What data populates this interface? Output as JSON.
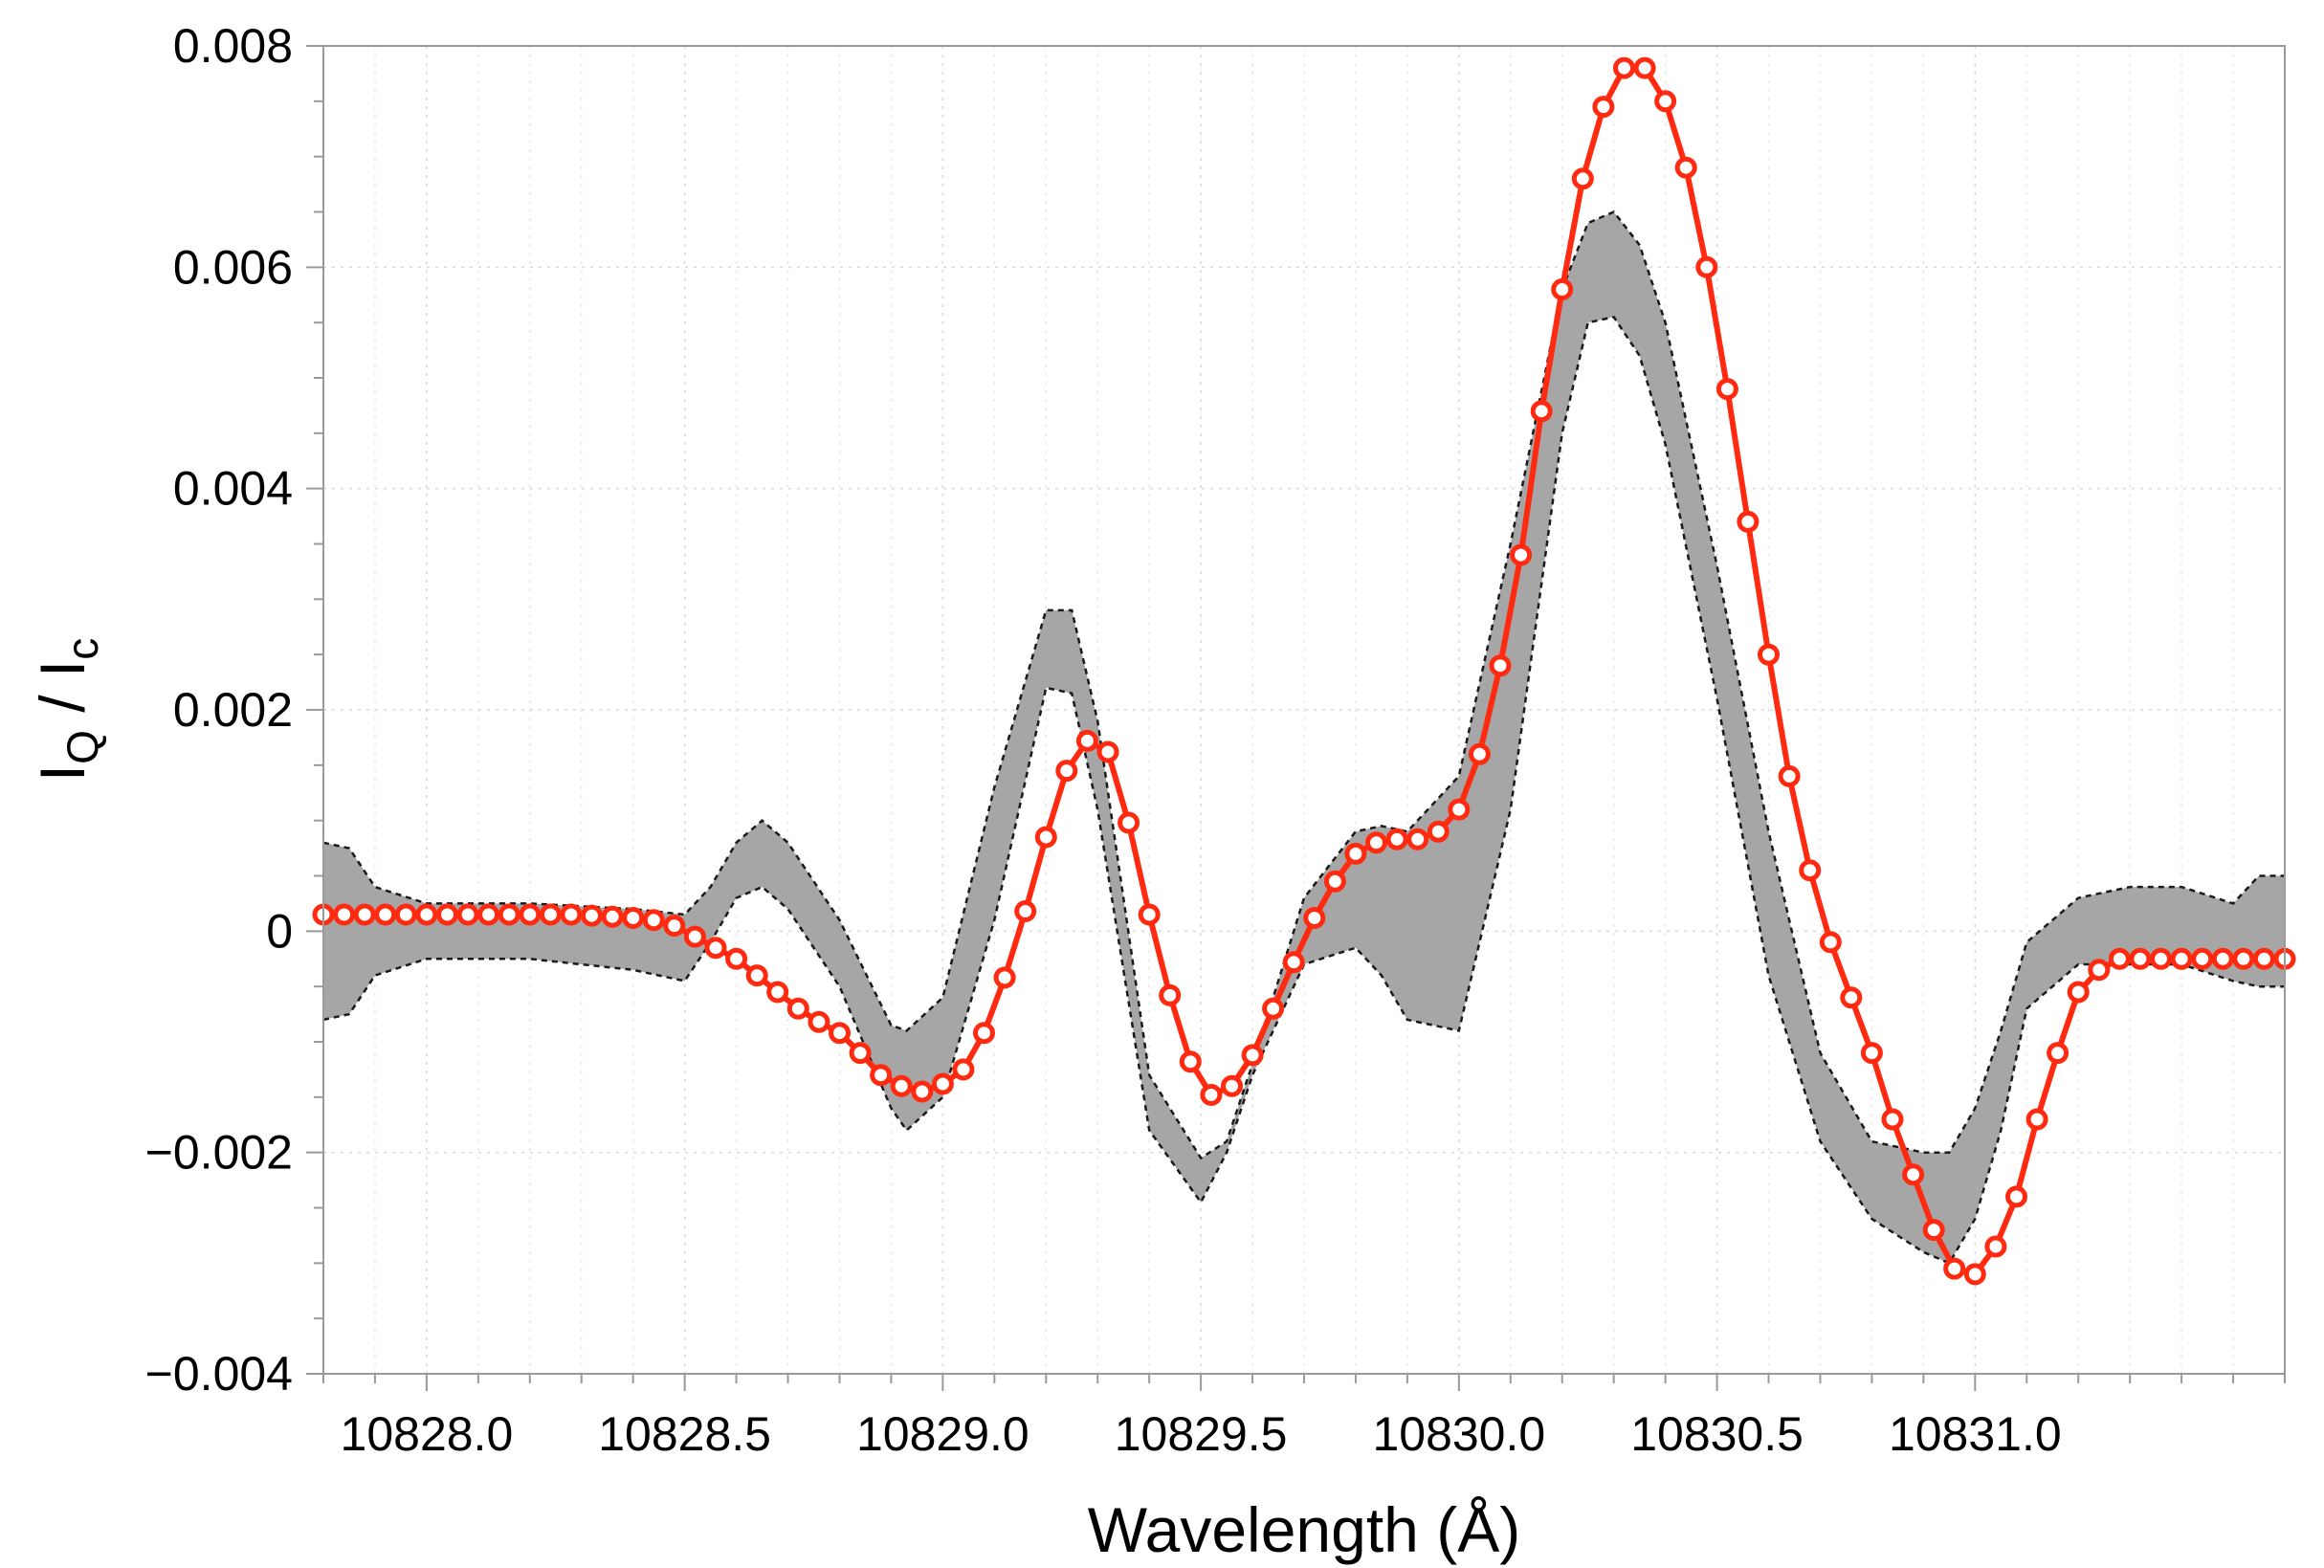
{
  "chart_data": {
    "type": "line",
    "title": "",
    "xlabel": "Wavelength (Å)",
    "ylabel": {
      "main": "I",
      "sub1": "Q",
      "sep": " / I",
      "sub2": "c"
    },
    "xlim": [
      10827.8,
      10831.6
    ],
    "ylim": [
      -0.004,
      0.008
    ],
    "x_ticks": [
      10828.0,
      10828.5,
      10829.0,
      10829.5,
      10830.0,
      10830.5,
      10831.0
    ],
    "x_tick_labels": [
      "10828.0",
      "10828.5",
      "10829.0",
      "10829.5",
      "10830.0",
      "10830.5",
      "10831.0"
    ],
    "y_ticks": [
      -0.004,
      -0.002,
      0,
      0.002,
      0.004,
      0.006,
      0.008
    ],
    "y_tick_labels": [
      "−0.004",
      "−0.002",
      "0",
      "0.002",
      "0.004",
      "0.006",
      "0.008"
    ],
    "grid": true,
    "colors": {
      "series": "#ff2a10",
      "band_fill": "#a6a6a6",
      "band_edge": "#1a1a1a"
    },
    "band": {
      "x": [
        10827.8,
        10827.85,
        10827.9,
        10828.0,
        10828.2,
        10828.4,
        10828.5,
        10828.55,
        10828.6,
        10828.65,
        10828.7,
        10828.8,
        10828.9,
        10828.93,
        10829.0,
        10829.1,
        10829.2,
        10829.25,
        10829.3,
        10829.4,
        10829.5,
        10829.55,
        10829.6,
        10829.7,
        10829.8,
        10829.85,
        10829.9,
        10830.0,
        10830.1,
        10830.2,
        10830.25,
        10830.3,
        10830.35,
        10830.4,
        10830.5,
        10830.6,
        10830.7,
        10830.8,
        10830.9,
        10830.95,
        10831.0,
        10831.05,
        10831.1,
        10831.2,
        10831.3,
        10831.4,
        10831.5,
        10831.55,
        10831.6
      ],
      "upper": [
        0.0008,
        0.00075,
        0.0004,
        0.00025,
        0.00025,
        0.0002,
        0.00015,
        0.0004,
        0.0008,
        0.001,
        0.0008,
        0.0001,
        -0.00085,
        -0.0009,
        -0.0006,
        0.0013,
        0.0029,
        0.0029,
        0.0019,
        -0.0013,
        -0.00205,
        -0.0019,
        -0.0012,
        0.0003,
        0.0009,
        0.00095,
        0.0009,
        0.0014,
        0.0035,
        0.0058,
        0.0064,
        0.0065,
        0.0062,
        0.0055,
        0.0033,
        0.0009,
        -0.0011,
        -0.0019,
        -0.002,
        -0.002,
        -0.0016,
        -0.0009,
        -0.0001,
        0.0003,
        0.0004,
        0.0004,
        0.00025,
        0.0005,
        0.0005
      ],
      "lower": [
        -0.0008,
        -0.00075,
        -0.0004,
        -0.00025,
        -0.00025,
        -0.00035,
        -0.00045,
        -0.0001,
        0.0003,
        0.0004,
        0.0002,
        -0.0005,
        -0.0016,
        -0.0018,
        -0.0015,
        0.0001,
        0.0022,
        0.00215,
        0.0011,
        -0.0018,
        -0.00245,
        -0.002,
        -0.0013,
        -0.0003,
        -0.00015,
        -0.0004,
        -0.0008,
        -0.0009,
        0.0011,
        0.0045,
        0.0055,
        0.00555,
        0.0052,
        0.0044,
        0.0021,
        -0.0004,
        -0.0019,
        -0.0026,
        -0.0029,
        -0.003,
        -0.0026,
        -0.0018,
        -0.0007,
        -0.0003,
        -0.0003,
        -0.0003,
        -0.00045,
        -0.0005,
        -0.0005
      ]
    },
    "series": [
      {
        "x": [
          10827.8,
          10827.84,
          10827.88,
          10827.92,
          10827.96,
          10828.0,
          10828.04,
          10828.08,
          10828.12,
          10828.16,
          10828.2,
          10828.24,
          10828.28,
          10828.32,
          10828.36,
          10828.4,
          10828.44,
          10828.48,
          10828.52,
          10828.56,
          10828.6,
          10828.64,
          10828.68,
          10828.72,
          10828.76,
          10828.8,
          10828.84,
          10828.88,
          10828.92,
          10828.96,
          10829.0,
          10829.04,
          10829.08,
          10829.12,
          10829.16,
          10829.2,
          10829.24,
          10829.28,
          10829.32,
          10829.36,
          10829.4,
          10829.44,
          10829.48,
          10829.52,
          10829.56,
          10829.6,
          10829.64,
          10829.68,
          10829.72,
          10829.76,
          10829.8,
          10829.84,
          10829.88,
          10829.92,
          10829.96,
          10830.0,
          10830.04,
          10830.08,
          10830.12,
          10830.16,
          10830.2,
          10830.24,
          10830.28,
          10830.32,
          10830.36,
          10830.4,
          10830.44,
          10830.48,
          10830.52,
          10830.56,
          10830.6,
          10830.64,
          10830.68,
          10830.72,
          10830.76,
          10830.8,
          10830.84,
          10830.88,
          10830.92,
          10830.96,
          10831.0,
          10831.04,
          10831.08,
          10831.12,
          10831.16,
          10831.2,
          10831.24,
          10831.28,
          10831.32,
          10831.36,
          10831.4,
          10831.44,
          10831.48,
          10831.52,
          10831.56,
          10831.6
        ],
        "values": [
          0.00015,
          0.00015,
          0.00015,
          0.00015,
          0.00015,
          0.00015,
          0.00015,
          0.00015,
          0.00015,
          0.00015,
          0.00015,
          0.00015,
          0.00015,
          0.00014,
          0.00013,
          0.00012,
          0.0001,
          5e-05,
          -5e-05,
          -0.00015,
          -0.00025,
          -0.0004,
          -0.00055,
          -0.0007,
          -0.00082,
          -0.00092,
          -0.0011,
          -0.0013,
          -0.0014,
          -0.00145,
          -0.00138,
          -0.00125,
          -0.00092,
          -0.00042,
          0.00018,
          0.00085,
          0.00145,
          0.00172,
          0.00162,
          0.00098,
          0.00015,
          -0.00058,
          -0.00118,
          -0.00148,
          -0.0014,
          -0.00112,
          -0.0007,
          -0.00028,
          0.00012,
          0.00045,
          0.0007,
          0.0008,
          0.00083,
          0.00083,
          0.0009,
          0.0011,
          0.0016,
          0.0024,
          0.0034,
          0.0047,
          0.0058,
          0.0068,
          0.00745,
          0.0078,
          0.0078,
          0.0075,
          0.0069,
          0.006,
          0.0049,
          0.0037,
          0.0025,
          0.0014,
          0.00055,
          -0.0001,
          -0.0006,
          -0.0011,
          -0.0017,
          -0.0022,
          -0.0027,
          -0.00305,
          -0.0031,
          -0.00285,
          -0.0024,
          -0.0017,
          -0.0011,
          -0.00055,
          -0.00035,
          -0.00025,
          -0.00025,
          -0.00025,
          -0.00025,
          -0.00025,
          -0.00025,
          -0.00025,
          -0.00025,
          -0.00025
        ]
      }
    ]
  }
}
